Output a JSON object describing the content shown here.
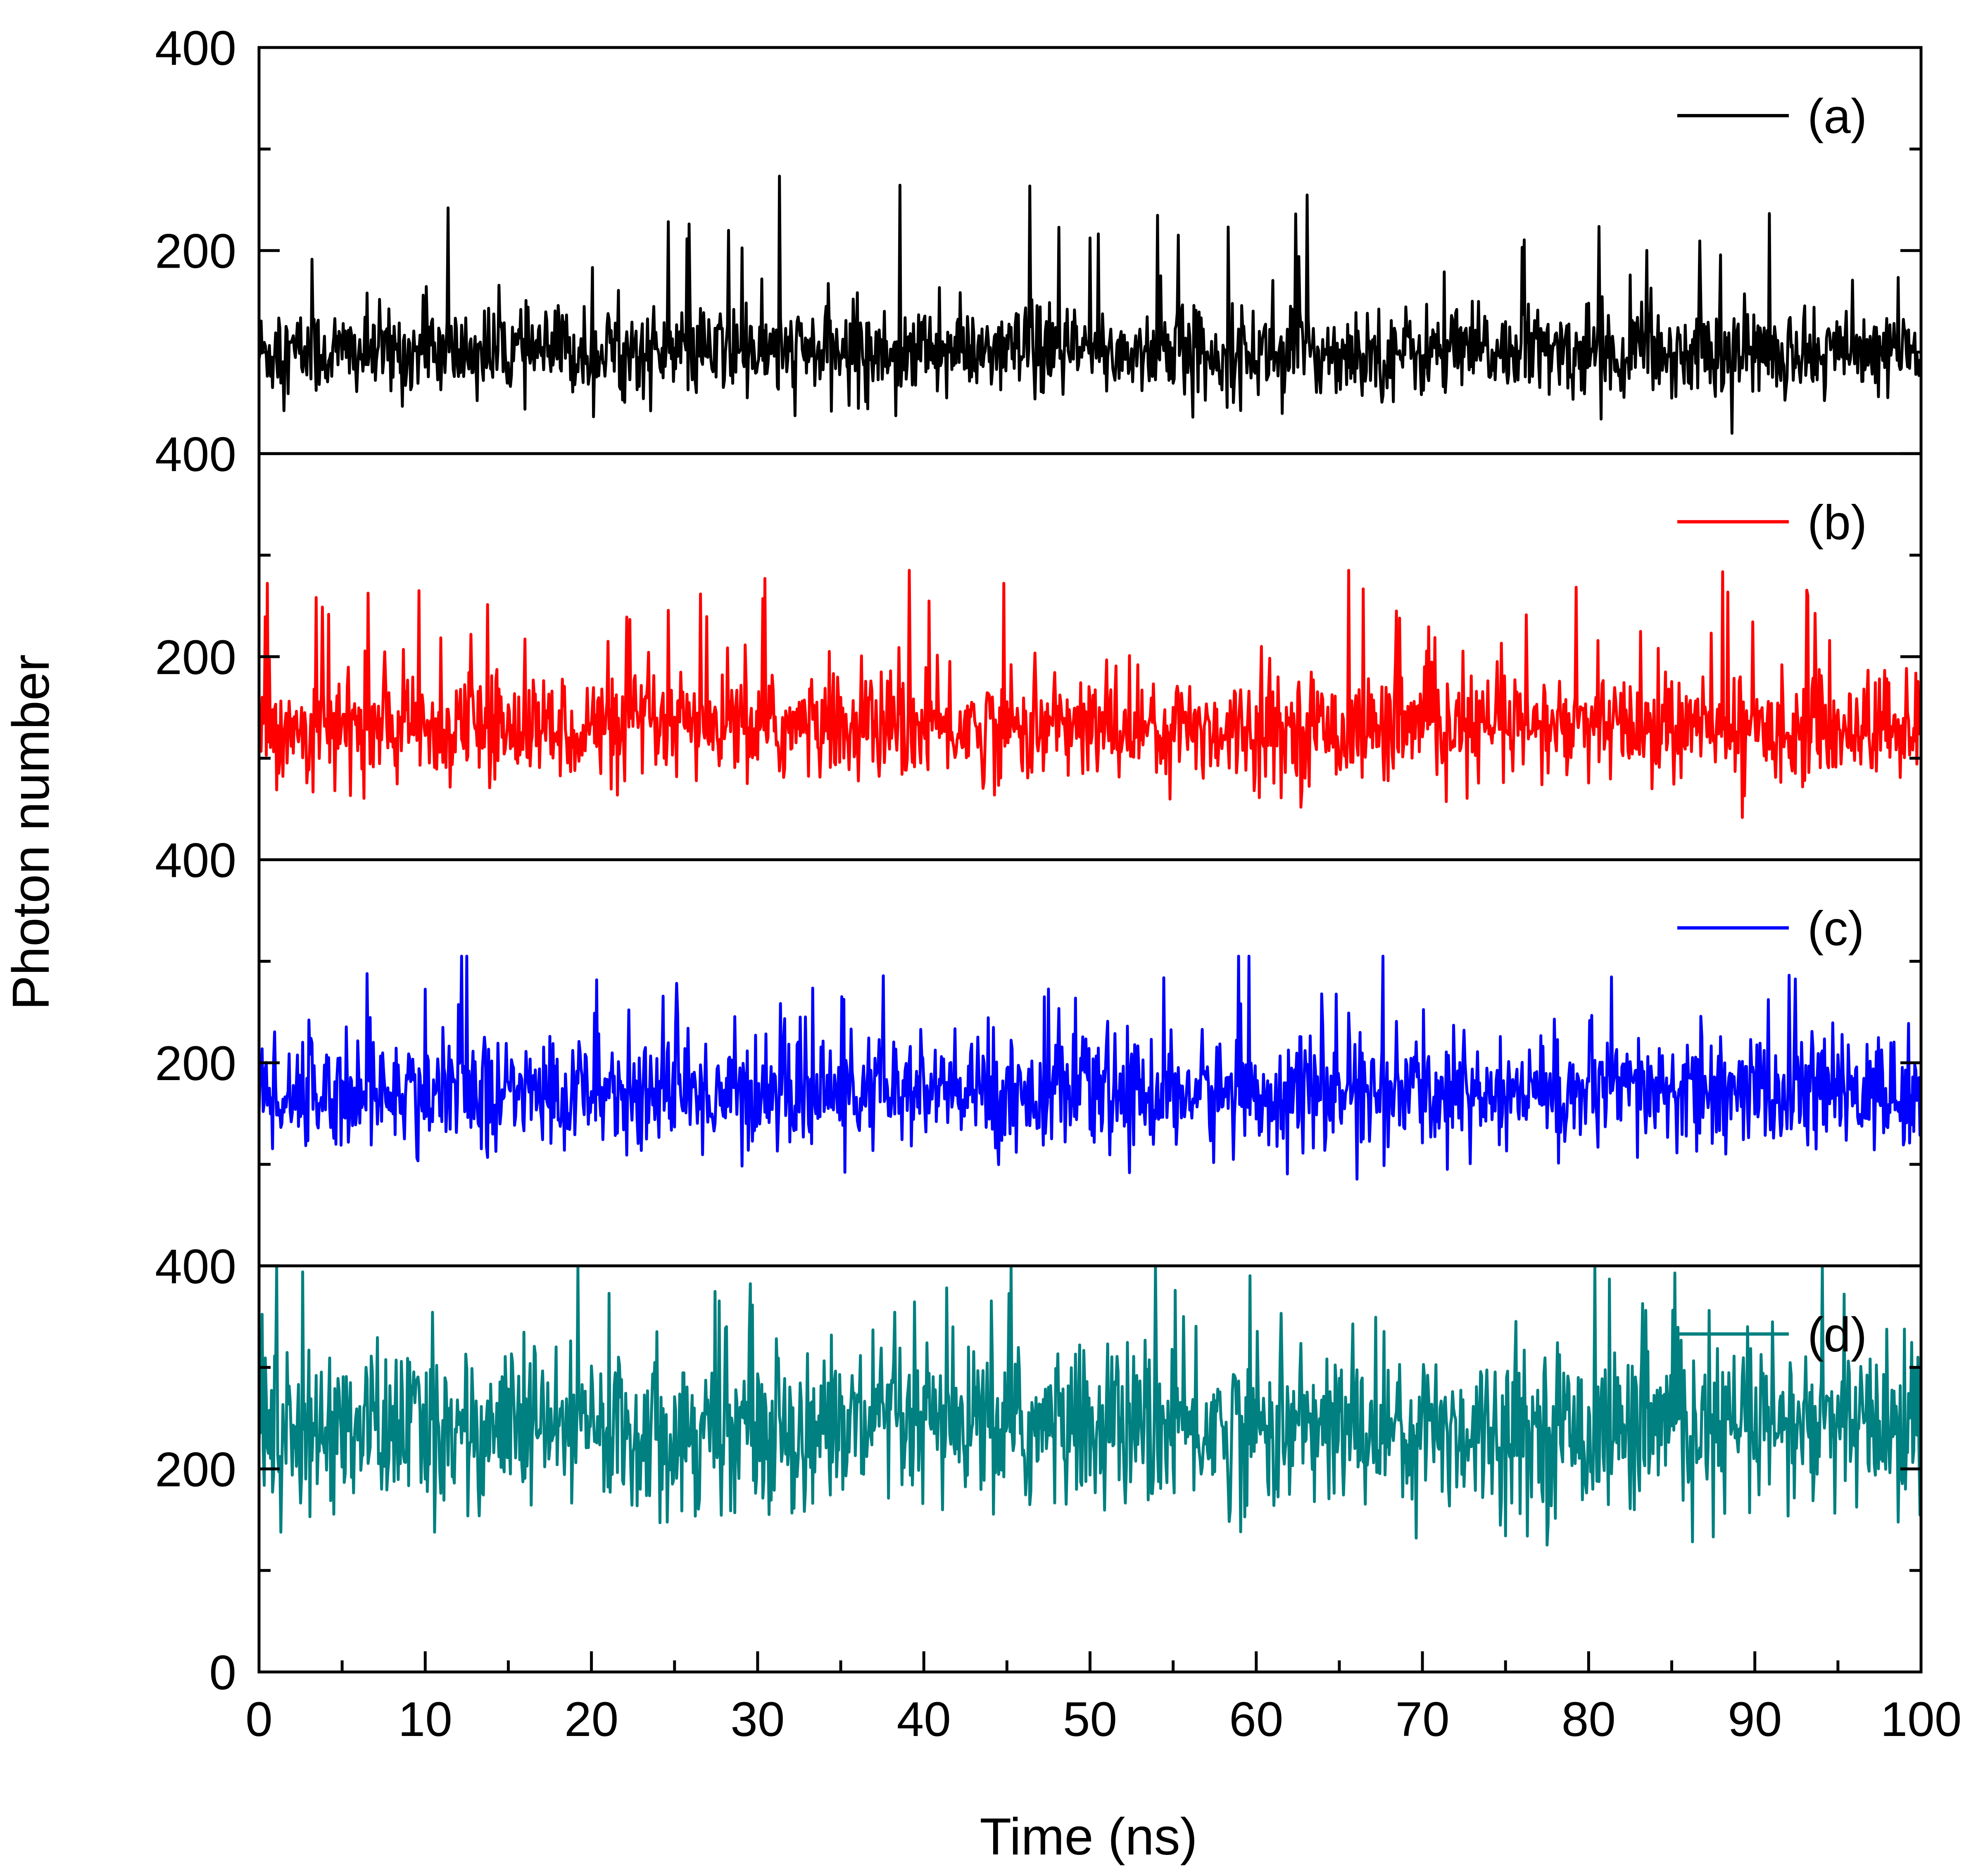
{
  "chart_data": {
    "type": "line",
    "layout": "stacked-panels",
    "xlabel": "Time (ns)",
    "ylabel": "Photon number",
    "xlim": [
      0,
      100
    ],
    "xticks": [
      0,
      10,
      20,
      30,
      40,
      50,
      60,
      70,
      80,
      90,
      100
    ],
    "ylim": [
      0,
      400
    ],
    "yticks": [
      0,
      200,
      400
    ],
    "legend_position": "top-right",
    "series": [
      {
        "name": "(a)",
        "color": "#000000",
        "baseline": 100,
        "spread": 22,
        "max": 278,
        "min": 20
      },
      {
        "name": "(b)",
        "color": "#ff0000",
        "baseline": 130,
        "spread": 26,
        "max": 285,
        "min": 25
      },
      {
        "name": "(c)",
        "color": "#0000ff",
        "baseline": 170,
        "spread": 28,
        "max": 305,
        "min": 55
      },
      {
        "name": "(d)",
        "color": "#008080",
        "baseline": 240,
        "spread": 40,
        "max": 400,
        "min": 125
      }
    ]
  }
}
